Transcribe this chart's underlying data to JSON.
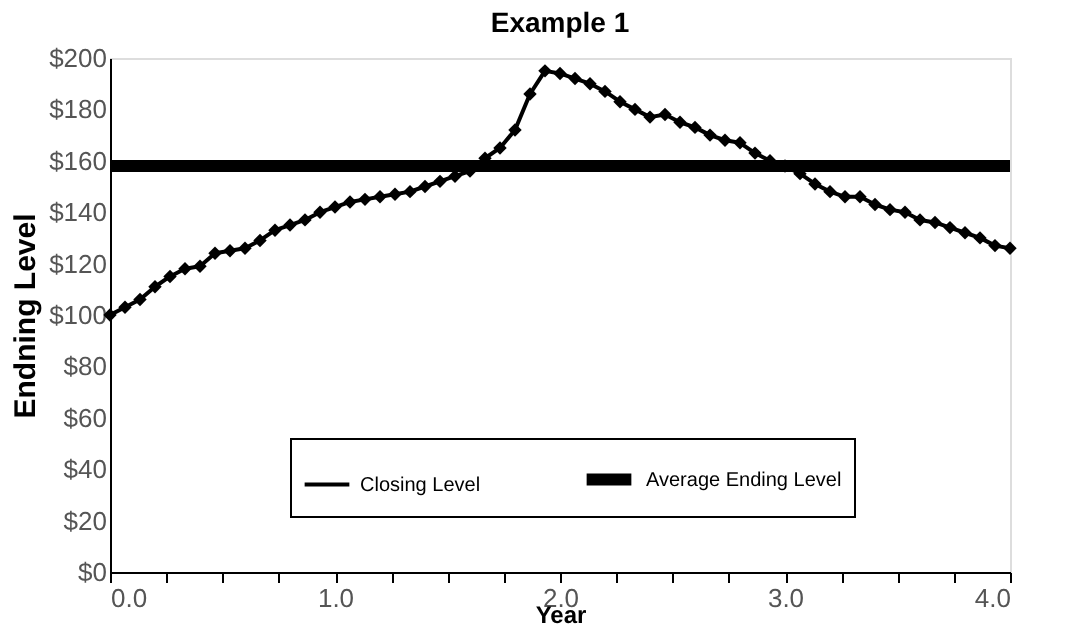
{
  "chart_data": {
    "type": "line",
    "title": "Example 1",
    "xlabel": "Year",
    "ylabel": "Endning Level",
    "series": [
      {
        "name": "Closing Level",
        "color": "#000000",
        "marker": "diamond",
        "x": [
          0,
          0.0667,
          0.1333,
          0.2,
          0.2667,
          0.3333,
          0.4,
          0.4667,
          0.5333,
          0.6,
          0.6667,
          0.7333,
          0.8,
          0.8667,
          0.9333,
          1,
          1.0667,
          1.1333,
          1.2,
          1.2667,
          1.3333,
          1.4,
          1.4667,
          1.5333,
          1.6,
          1.6667,
          1.7333,
          1.8,
          1.8667,
          1.9333,
          2,
          2.0667,
          2.1333,
          2.2,
          2.2667,
          2.3333,
          2.4,
          2.4667,
          2.5333,
          2.6,
          2.6667,
          2.7333,
          2.8,
          2.8667,
          2.9333,
          3,
          3.0667,
          3.1333,
          3.2,
          3.2667,
          3.3333,
          3.4,
          3.4667,
          3.5333,
          3.6,
          3.6667,
          3.7333,
          3.8,
          3.8667,
          3.9333,
          4
        ],
        "values": [
          100,
          103,
          106,
          111,
          115,
          118,
          119,
          124,
          125,
          126,
          129,
          133,
          135,
          137,
          140,
          142,
          144,
          145,
          146,
          147,
          148,
          150,
          152,
          154,
          156,
          161,
          165,
          172,
          186,
          195,
          194,
          192,
          190,
          187,
          183,
          180,
          177,
          178,
          175,
          173,
          170,
          168,
          167,
          163,
          160,
          158,
          155,
          151,
          148,
          146,
          146,
          143,
          141,
          140,
          137,
          136,
          134,
          132,
          130,
          127,
          126
        ]
      },
      {
        "name": "Average Ending Level",
        "color": "#000000",
        "marker": "none",
        "x": [
          0,
          4
        ],
        "values": [
          158,
          158
        ]
      }
    ],
    "xlim": [
      0,
      4
    ],
    "ylim": [
      0,
      200
    ],
    "xticks": [
      {
        "value": 0,
        "label": "0.0"
      },
      {
        "value": 0.25,
        "label": null
      },
      {
        "value": 0.5,
        "label": null
      },
      {
        "value": 0.75,
        "label": null
      },
      {
        "value": 1,
        "label": "1.0"
      },
      {
        "value": 1.25,
        "label": null
      },
      {
        "value": 1.5,
        "label": null
      },
      {
        "value": 1.75,
        "label": null
      },
      {
        "value": 2,
        "label": "2.0"
      },
      {
        "value": 2.25,
        "label": null
      },
      {
        "value": 2.5,
        "label": null
      },
      {
        "value": 2.75,
        "label": null
      },
      {
        "value": 3,
        "label": "3.0"
      },
      {
        "value": 3.25,
        "label": null
      },
      {
        "value": 3.5,
        "label": null
      },
      {
        "value": 3.75,
        "label": null
      },
      {
        "value": 4,
        "label": "4.0"
      }
    ],
    "yticks": [
      {
        "value": 0,
        "label": "$0"
      },
      {
        "value": 20,
        "label": "$20"
      },
      {
        "value": 40,
        "label": "$40"
      },
      {
        "value": 60,
        "label": "$60"
      },
      {
        "value": 80,
        "label": "$80"
      },
      {
        "value": 100,
        "label": "$100"
      },
      {
        "value": 120,
        "label": "$120"
      },
      {
        "value": 140,
        "label": "$140"
      },
      {
        "value": 160,
        "label": "$160"
      },
      {
        "value": 180,
        "label": "$180"
      },
      {
        "value": 200,
        "label": "$200"
      }
    ],
    "grid": false,
    "legend": "bottom"
  }
}
